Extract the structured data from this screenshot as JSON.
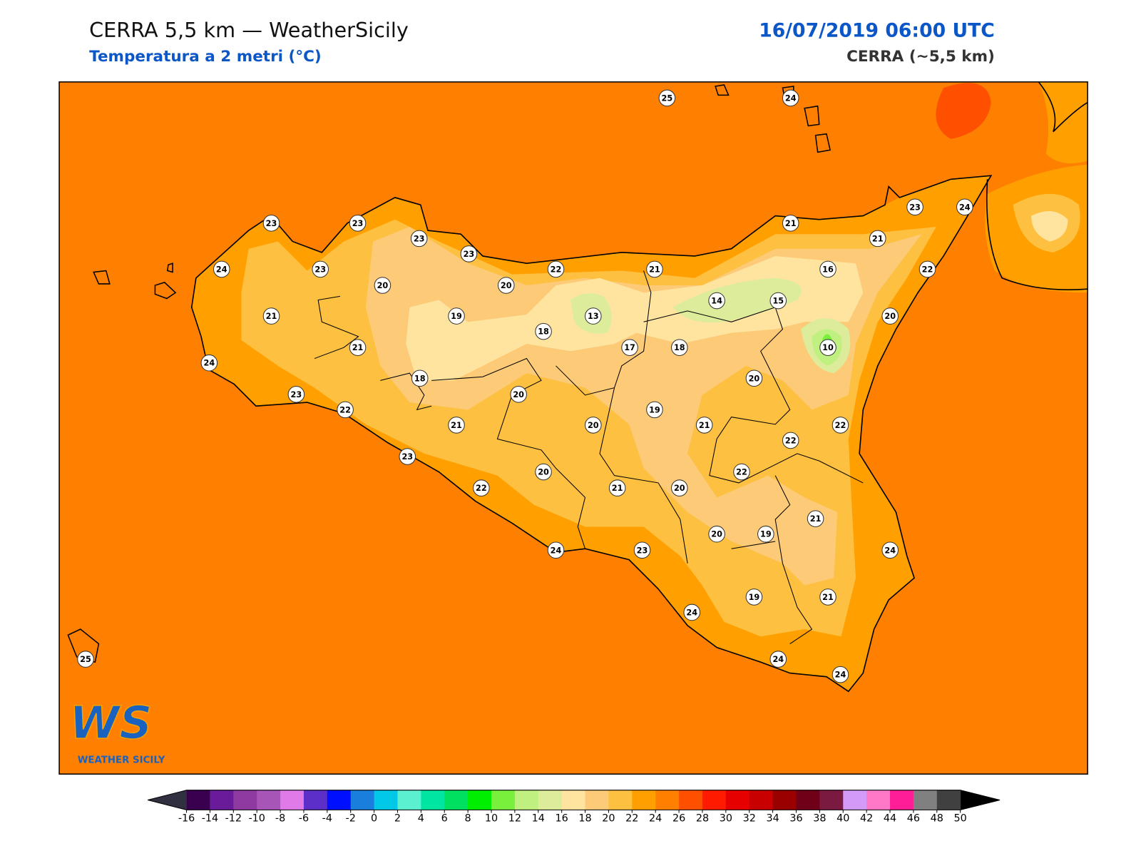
{
  "header": {
    "title": "CERRA 5,5 km — WeatherSicily",
    "subtitle": "Temperatura a 2 metri (°C)",
    "datetime": "16/07/2019 06:00 UTC",
    "model": "CERRA (~5,5 km)"
  },
  "map": {
    "background_color": "#ff8000",
    "stations": [
      25,
      24,
      23,
      23,
      23,
      23,
      24,
      23,
      20,
      20,
      22,
      21,
      21,
      21,
      23,
      24,
      22,
      16,
      14,
      15,
      13,
      19,
      21,
      18,
      17,
      18,
      10,
      20,
      21,
      24,
      18,
      20,
      20,
      23,
      22,
      21,
      20,
      19,
      21,
      22,
      22,
      23,
      20,
      22,
      22,
      21,
      20,
      21,
      20,
      19,
      24,
      23,
      24,
      19,
      21,
      24,
      24,
      24,
      25
    ]
  },
  "logo": {
    "mark": "WS",
    "text": "WEATHER SICILY"
  },
  "colorbar": {
    "ticks": [
      -16,
      -14,
      -12,
      -10,
      -8,
      -6,
      -4,
      -2,
      0,
      2,
      4,
      6,
      8,
      10,
      12,
      14,
      16,
      18,
      20,
      22,
      24,
      26,
      28,
      30,
      32,
      34,
      36,
      38,
      40,
      42,
      44,
      46,
      48,
      50
    ],
    "colors": [
      "#3a0050",
      "#6a1b9a",
      "#8e3aa0",
      "#a855b8",
      "#e07ae8",
      "#5c2fc8",
      "#0010ff",
      "#1a7fdc",
      "#00c8e6",
      "#5af0d0",
      "#00e6a0",
      "#00e060",
      "#00ee00",
      "#78f03c",
      "#c0f080",
      "#dcec9a",
      "#ffe4a0",
      "#fdca78",
      "#fdc040",
      "#ffa000",
      "#ff8000",
      "#ff5000",
      "#ff1a00",
      "#e60000",
      "#c80000",
      "#9a0000",
      "#700018",
      "#7a1a40",
      "#d49af8",
      "#ff78c8",
      "#ff1e96",
      "#808080",
      "#404040"
    ],
    "under_color": "#303040",
    "over_color": "#000000"
  }
}
